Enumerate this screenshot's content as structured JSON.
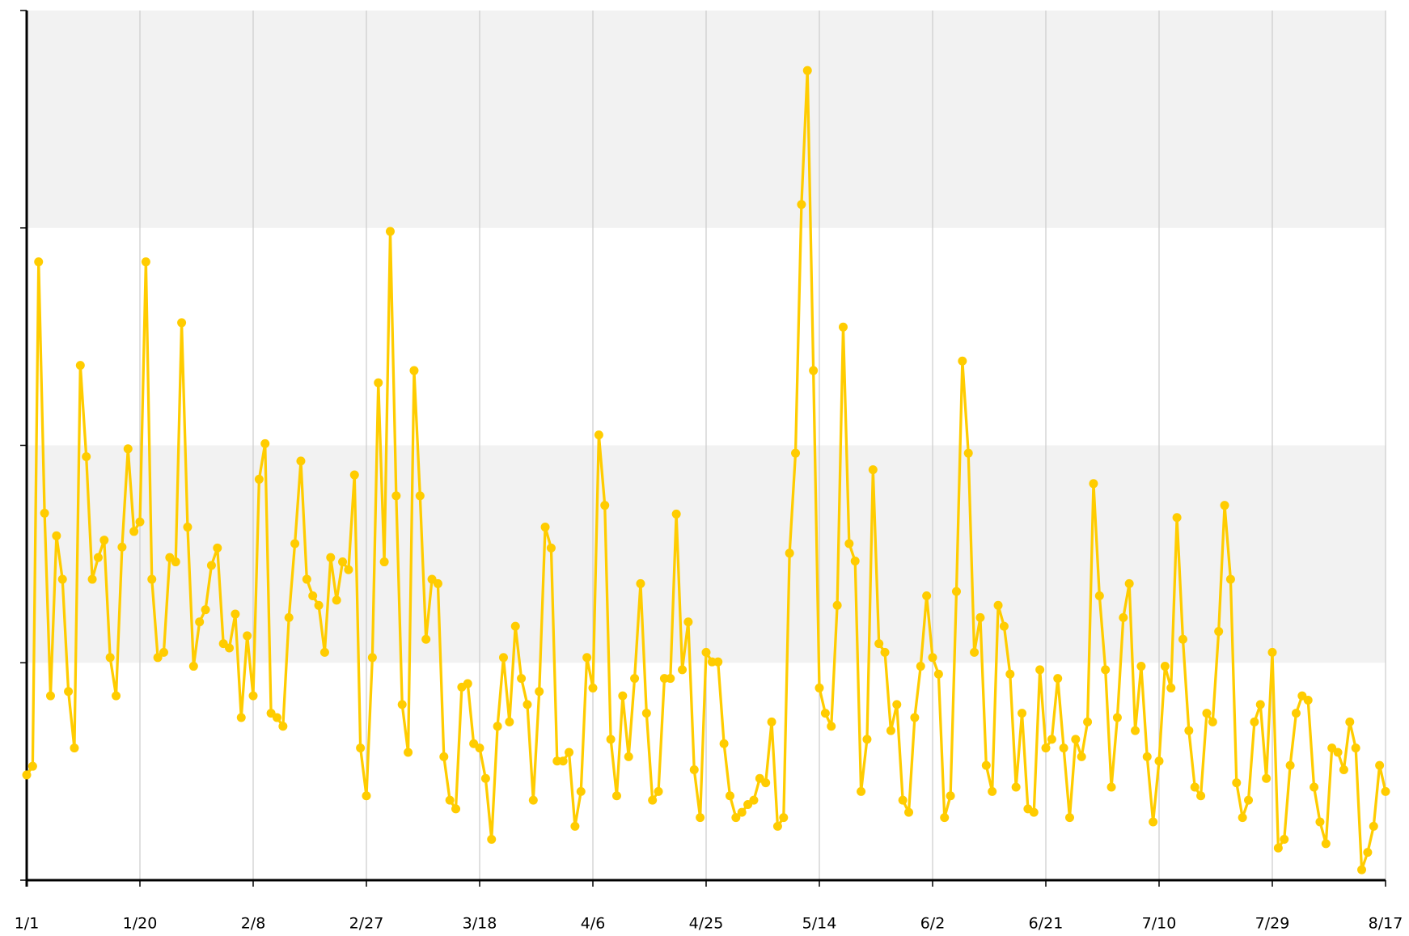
{
  "chart_data": {
    "type": "line",
    "x": [
      0,
      1,
      2,
      3,
      4,
      5,
      6,
      7,
      8,
      9,
      10,
      11,
      12,
      13,
      14,
      15,
      16,
      17,
      18,
      19,
      20,
      21,
      22,
      23,
      24,
      25,
      26,
      27,
      28,
      29,
      30,
      31,
      32,
      33,
      34,
      35,
      36,
      37,
      38,
      39,
      40,
      41,
      42,
      43,
      44,
      45,
      46,
      47,
      48,
      49,
      50,
      51,
      52,
      53,
      54,
      55,
      56,
      57,
      58,
      59,
      60,
      61,
      62,
      63,
      64,
      65,
      66,
      67,
      68,
      69,
      70,
      71,
      72,
      73,
      74,
      75,
      76,
      77,
      78,
      79,
      80,
      81,
      82,
      83,
      84,
      85,
      86,
      87,
      88,
      89,
      90,
      91,
      92,
      93,
      94,
      95,
      96,
      97,
      98,
      99,
      100,
      101,
      102,
      103,
      104,
      105,
      106,
      107,
      108,
      109,
      110,
      111,
      112,
      113,
      114,
      115,
      116,
      117,
      118,
      119,
      120,
      121,
      122,
      123,
      124,
      125,
      126,
      127,
      128,
      129,
      130,
      131,
      132,
      133,
      134,
      135,
      136,
      137,
      138,
      139,
      140,
      141,
      142,
      143,
      144,
      145,
      146,
      147,
      148,
      149,
      150,
      151,
      152,
      153,
      154,
      155,
      156,
      157,
      158,
      159,
      160,
      161,
      162,
      163,
      164,
      165,
      166,
      167,
      168,
      169,
      170,
      171,
      172,
      173,
      174,
      175,
      176,
      177,
      178,
      179,
      180,
      181,
      182,
      183,
      184,
      185,
      186,
      187,
      188,
      189,
      190,
      191,
      192,
      193,
      194,
      195,
      196,
      197,
      198,
      199,
      200,
      201,
      202,
      203,
      204,
      205,
      206,
      207,
      208,
      209,
      210,
      211,
      212,
      213,
      214,
      215,
      216,
      217,
      218,
      219,
      220,
      221,
      222,
      223,
      224,
      225,
      226,
      227,
      228
    ],
    "series": [
      {
        "color": "#ffcc00",
        "values": [
          12.1,
          13.1,
          71.1,
          42.2,
          21.2,
          39.6,
          34.6,
          21.7,
          15.2,
          59.2,
          48.7,
          34.6,
          37.1,
          39.1,
          25.6,
          21.2,
          38.3,
          49.6,
          40.1,
          41.2,
          71.1,
          34.6,
          25.6,
          26.2,
          37.1,
          36.6,
          64.1,
          40.6,
          24.6,
          29.7,
          31.1,
          36.2,
          38.2,
          27.2,
          26.7,
          30.6,
          18.7,
          28.1,
          21.2,
          46.1,
          50.2,
          19.2,
          18.7,
          17.7,
          30.2,
          38.7,
          48.2,
          34.6,
          32.7,
          31.6,
          26.2,
          37.1,
          32.2,
          36.6,
          35.7,
          46.6,
          15.2,
          9.7,
          25.6,
          57.2,
          36.6,
          74.6,
          44.2,
          20.2,
          14.7,
          58.6,
          44.2,
          27.7,
          34.6,
          34.1,
          14.2,
          9.2,
          8.2,
          22.2,
          22.6,
          15.7,
          15.2,
          11.7,
          4.7,
          17.7,
          25.6,
          18.2,
          29.2,
          23.2,
          20.2,
          9.2,
          21.7,
          40.6,
          38.2,
          13.7,
          13.7,
          14.7,
          6.2,
          10.2,
          25.6,
          22.1,
          51.2,
          43.1,
          16.2,
          9.7,
          21.2,
          14.2,
          23.2,
          34.1,
          19.2,
          9.2,
          10.2,
          23.2,
          23.2,
          42.1,
          24.2,
          29.7,
          12.7,
          7.2,
          26.2,
          25.1,
          25.1,
          15.7,
          9.7,
          7.2,
          7.8,
          8.7,
          9.2,
          11.7,
          11.2,
          18.2,
          6.2,
          7.2,
          37.6,
          49.1,
          77.7,
          93.1,
          58.6,
          22.1,
          19.2,
          17.7,
          31.6,
          63.6,
          38.7,
          36.7,
          10.2,
          16.2,
          47.2,
          27.2,
          26.2,
          17.2,
          20.2,
          9.2,
          7.8,
          18.7,
          24.6,
          32.7,
          25.6,
          23.7,
          7.2,
          9.7,
          33.2,
          59.7,
          49.1,
          26.2,
          30.2,
          13.2,
          10.2,
          31.6,
          29.2,
          23.7,
          10.7,
          19.2,
          8.2,
          7.8,
          24.2,
          15.2,
          16.2,
          23.2,
          15.2,
          7.2,
          16.2,
          14.2,
          18.2,
          45.6,
          32.7,
          24.2,
          10.7,
          18.7,
          30.2,
          34.1,
          17.2,
          24.6,
          14.2,
          6.7,
          13.7,
          24.6,
          22.1,
          41.7,
          27.7,
          17.2,
          10.7,
          9.7,
          19.2,
          18.2,
          28.6,
          43.1,
          34.6,
          11.2,
          7.2,
          9.2,
          18.2,
          20.2,
          11.7,
          26.2,
          3.7,
          4.7,
          13.2,
          19.2,
          21.2,
          20.7,
          10.7,
          6.7,
          4.2,
          15.2,
          14.7,
          12.7,
          18.2,
          15.2,
          1.2,
          3.2,
          6.2,
          13.2,
          10.2
        ]
      }
    ],
    "xlim": [
      0,
      228
    ],
    "xticks": [
      {
        "value": 0,
        "label": "1/1"
      },
      {
        "value": 19,
        "label": "1/20"
      },
      {
        "value": 38,
        "label": "2/8"
      },
      {
        "value": 57,
        "label": "2/27"
      },
      {
        "value": 76,
        "label": "3/18"
      },
      {
        "value": 95,
        "label": "4/6"
      },
      {
        "value": 114,
        "label": "4/25"
      },
      {
        "value": 133,
        "label": "5/14"
      },
      {
        "value": 152,
        "label": "6/2"
      },
      {
        "value": 171,
        "label": "6/21"
      },
      {
        "value": 190,
        "label": "7/10"
      },
      {
        "value": 209,
        "label": "7/29"
      },
      {
        "value": 228,
        "label": "8/17"
      }
    ],
    "ylim": [
      0,
      100
    ],
    "yticks": [
      0,
      25,
      50,
      75,
      100
    ],
    "grid": "x",
    "bands": true,
    "markers": true
  }
}
